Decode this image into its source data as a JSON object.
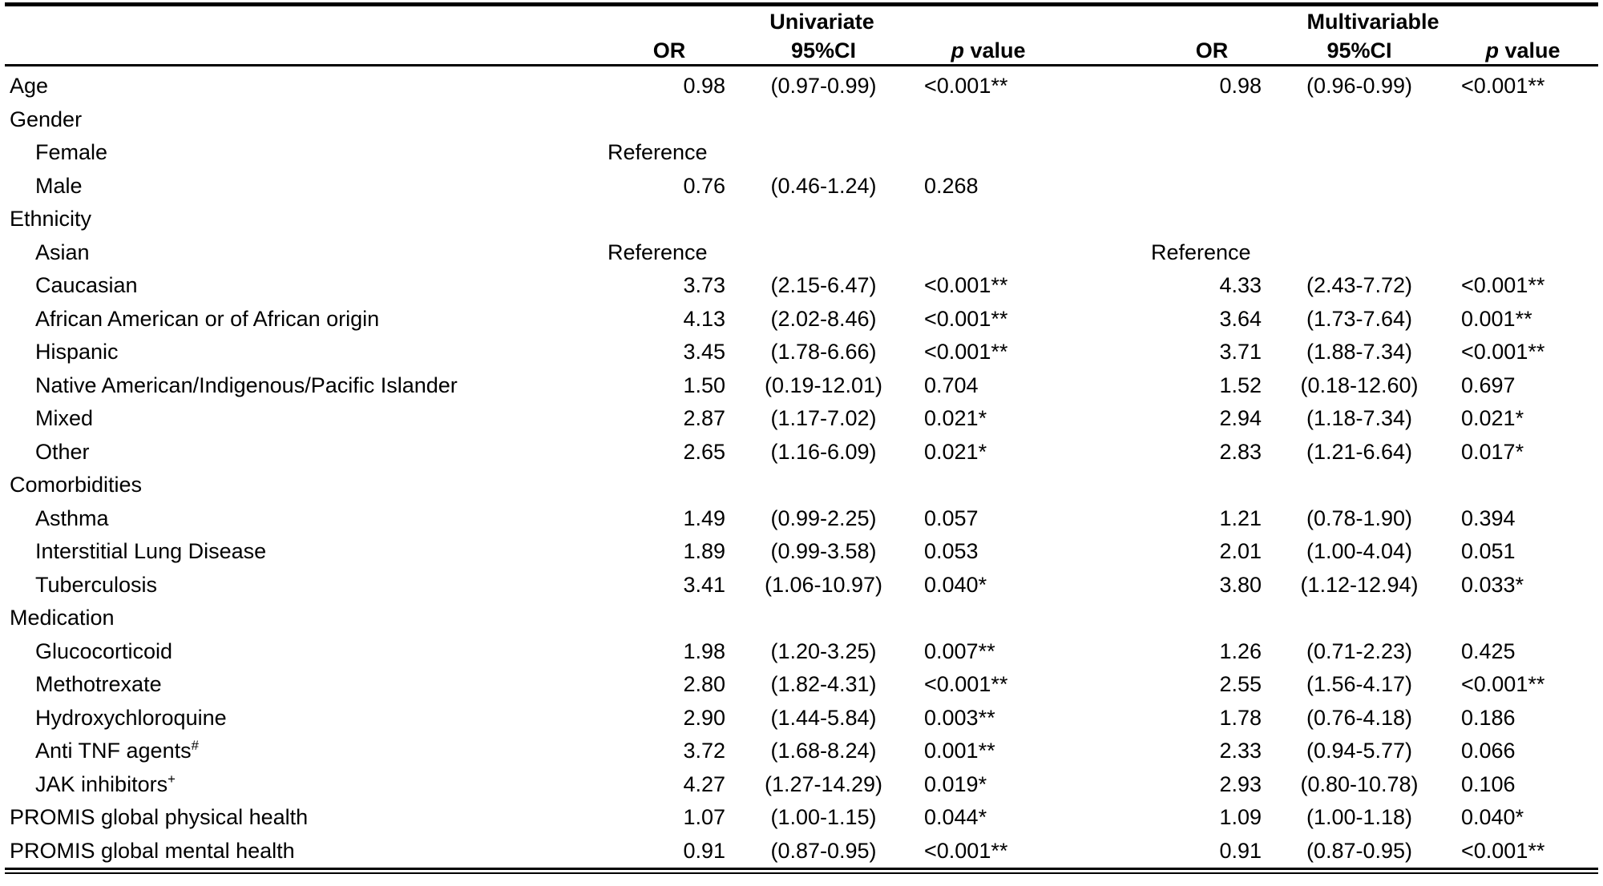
{
  "colors": {
    "background": "#ffffff",
    "text": "#000000",
    "rule": "#000000"
  },
  "table": {
    "group_headers": {
      "univariate": "Univariate",
      "multivariable": "Multivariable"
    },
    "column_headers": {
      "or": "OR",
      "ci": "95%CI",
      "p_italic": "p",
      "p_word": "value"
    },
    "reference_label": "Reference",
    "rows": [
      {
        "label": "Age",
        "indent": false,
        "sup": "",
        "u_or": "0.98",
        "u_ci": "(0.97-0.99)",
        "u_p": "<0.001**",
        "m_or": "0.98",
        "m_ci": "(0.96-0.99)",
        "m_p": "<0.001**"
      },
      {
        "label": "Gender",
        "indent": false,
        "sup": "",
        "u_or": "",
        "u_ci": "",
        "u_p": "",
        "m_or": "",
        "m_ci": "",
        "m_p": ""
      },
      {
        "label": "Female",
        "indent": true,
        "sup": "",
        "u_or": "Reference",
        "u_ci": "",
        "u_p": "",
        "m_or": "",
        "m_ci": "",
        "m_p": ""
      },
      {
        "label": "Male",
        "indent": true,
        "sup": "",
        "u_or": "0.76",
        "u_ci": "(0.46-1.24)",
        "u_p": "0.268",
        "m_or": "",
        "m_ci": "",
        "m_p": ""
      },
      {
        "label": "Ethnicity",
        "indent": false,
        "sup": "",
        "u_or": "",
        "u_ci": "",
        "u_p": "",
        "m_or": "",
        "m_ci": "",
        "m_p": ""
      },
      {
        "label": "Asian",
        "indent": true,
        "sup": "",
        "u_or": "Reference",
        "u_ci": "",
        "u_p": "",
        "m_or": "Reference",
        "m_ci": "",
        "m_p": ""
      },
      {
        "label": "Caucasian",
        "indent": true,
        "sup": "",
        "u_or": "3.73",
        "u_ci": "(2.15-6.47)",
        "u_p": "<0.001**",
        "m_or": "4.33",
        "m_ci": "(2.43-7.72)",
        "m_p": "<0.001**"
      },
      {
        "label": "African American or of African origin",
        "indent": true,
        "sup": "",
        "u_or": "4.13",
        "u_ci": "(2.02-8.46)",
        "u_p": "<0.001**",
        "m_or": "3.64",
        "m_ci": "(1.73-7.64)",
        "m_p": "0.001**"
      },
      {
        "label": "Hispanic",
        "indent": true,
        "sup": "",
        "u_or": "3.45",
        "u_ci": "(1.78-6.66)",
        "u_p": "<0.001**",
        "m_or": "3.71",
        "m_ci": "(1.88-7.34)",
        "m_p": "<0.001**"
      },
      {
        "label": "Native American/Indigenous/Pacific Islander",
        "indent": true,
        "sup": "",
        "u_or": "1.50",
        "u_ci": "(0.19-12.01)",
        "u_p": "0.704",
        "m_or": "1.52",
        "m_ci": "(0.18-12.60)",
        "m_p": "0.697"
      },
      {
        "label": "Mixed",
        "indent": true,
        "sup": "",
        "u_or": "2.87",
        "u_ci": "(1.17-7.02)",
        "u_p": "0.021*",
        "m_or": "2.94",
        "m_ci": "(1.18-7.34)",
        "m_p": "0.021*"
      },
      {
        "label": "Other",
        "indent": true,
        "sup": "",
        "u_or": "2.65",
        "u_ci": "(1.16-6.09)",
        "u_p": "0.021*",
        "m_or": "2.83",
        "m_ci": "(1.21-6.64)",
        "m_p": "0.017*"
      },
      {
        "label": "Comorbidities",
        "indent": false,
        "sup": "",
        "u_or": "",
        "u_ci": "",
        "u_p": "",
        "m_or": "",
        "m_ci": "",
        "m_p": ""
      },
      {
        "label": "Asthma",
        "indent": true,
        "sup": "",
        "u_or": "1.49",
        "u_ci": "(0.99-2.25)",
        "u_p": "0.057",
        "m_or": "1.21",
        "m_ci": "(0.78-1.90)",
        "m_p": "0.394"
      },
      {
        "label": "Interstitial Lung Disease",
        "indent": true,
        "sup": "",
        "u_or": "1.89",
        "u_ci": "(0.99-3.58)",
        "u_p": "0.053",
        "m_or": "2.01",
        "m_ci": "(1.00-4.04)",
        "m_p": "0.051"
      },
      {
        "label": "Tuberculosis",
        "indent": true,
        "sup": "",
        "u_or": "3.41",
        "u_ci": "(1.06-10.97)",
        "u_p": "0.040*",
        "m_or": "3.80",
        "m_ci": "(1.12-12.94)",
        "m_p": "0.033*"
      },
      {
        "label": "Medication",
        "indent": false,
        "sup": "",
        "u_or": "",
        "u_ci": "",
        "u_p": "",
        "m_or": "",
        "m_ci": "",
        "m_p": ""
      },
      {
        "label": "Glucocorticoid",
        "indent": true,
        "sup": "",
        "u_or": "1.98",
        "u_ci": "(1.20-3.25)",
        "u_p": "0.007**",
        "m_or": "1.26",
        "m_ci": "(0.71-2.23)",
        "m_p": "0.425"
      },
      {
        "label": "Methotrexate",
        "indent": true,
        "sup": "",
        "u_or": "2.80",
        "u_ci": "(1.82-4.31)",
        "u_p": "<0.001**",
        "m_or": "2.55",
        "m_ci": "(1.56-4.17)",
        "m_p": "<0.001**"
      },
      {
        "label": "Hydroxychloroquine",
        "indent": true,
        "sup": "",
        "u_or": "2.90",
        "u_ci": "(1.44-5.84)",
        "u_p": "0.003**",
        "m_or": "1.78",
        "m_ci": "(0.76-4.18)",
        "m_p": "0.186"
      },
      {
        "label": "Anti TNF agents",
        "indent": true,
        "sup": "#",
        "u_or": "3.72",
        "u_ci": "(1.68-8.24)",
        "u_p": "0.001**",
        "m_or": "2.33",
        "m_ci": "(0.94-5.77)",
        "m_p": "0.066"
      },
      {
        "label": "JAK inhibitors",
        "indent": true,
        "sup": "+",
        "u_or": "4.27",
        "u_ci": "(1.27-14.29)",
        "u_p": "0.019*",
        "m_or": "2.93",
        "m_ci": "(0.80-10.78)",
        "m_p": "0.106"
      },
      {
        "label": "PROMIS global physical health",
        "indent": false,
        "sup": "",
        "u_or": "1.07",
        "u_ci": "(1.00-1.15)",
        "u_p": "0.044*",
        "m_or": "1.09",
        "m_ci": "(1.00-1.18)",
        "m_p": "0.040*"
      },
      {
        "label": "PROMIS global mental health",
        "indent": false,
        "sup": "",
        "u_or": "0.91",
        "u_ci": "(0.87-0.95)",
        "u_p": "<0.001**",
        "m_or": "0.91",
        "m_ci": "(0.87-0.95)",
        "m_p": "<0.001**"
      }
    ]
  }
}
